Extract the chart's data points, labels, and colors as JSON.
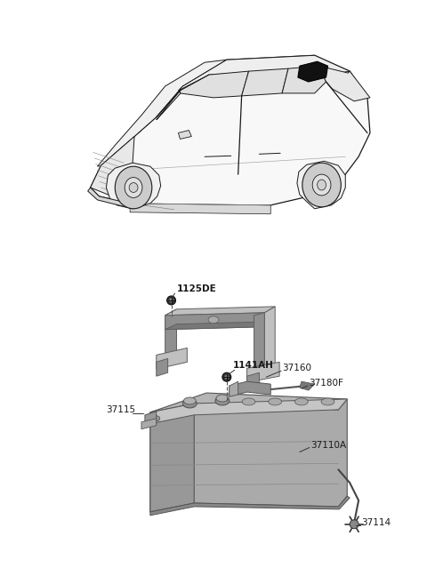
{
  "bg_color": "#ffffff",
  "fig_width": 4.8,
  "fig_height": 6.57,
  "dpi": 100,
  "text_color": "#1a1a1a",
  "label_fontsize": 7.0,
  "parts_bold": [
    "1125DE",
    "1141AH"
  ],
  "parts_normal": [
    "37160",
    "37115",
    "37180F",
    "37110A",
    "37114"
  ],
  "car_outline": "#1a1a1a",
  "car_fill": "#ffffff",
  "part_gray": "#8a8a8a",
  "part_dark": "#555555",
  "part_light": "#b8b8b8"
}
